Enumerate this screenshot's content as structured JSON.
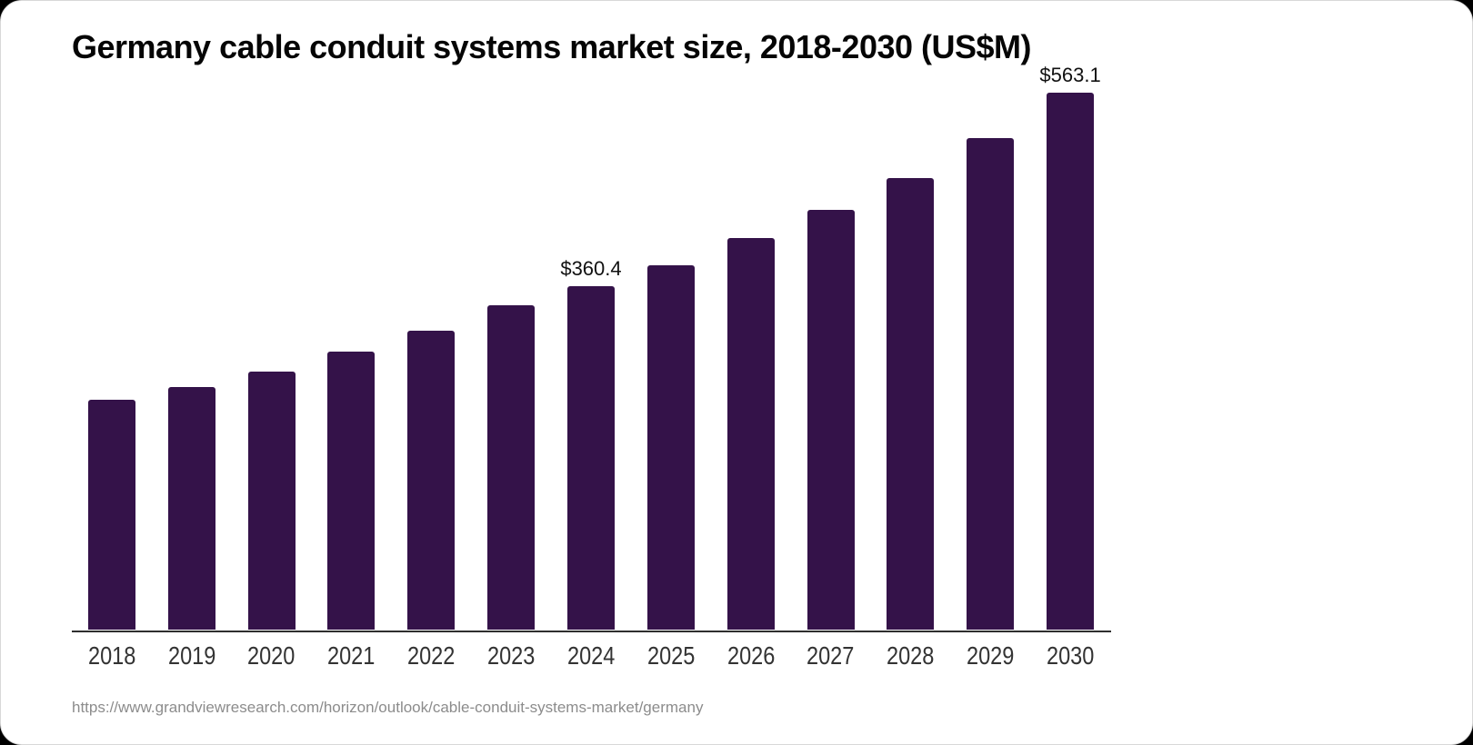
{
  "chart_data": {
    "type": "bar",
    "title": "Germany cable conduit systems market size, 2018-2030 (US$M)",
    "categories": [
      "2018",
      "2019",
      "2020",
      "2021",
      "2022",
      "2023",
      "2024",
      "2025",
      "2026",
      "2027",
      "2028",
      "2029",
      "2030"
    ],
    "values": [
      241.2,
      254.6,
      270.9,
      291.6,
      313.4,
      340.0,
      360.4,
      382.3,
      410.8,
      440.3,
      473.7,
      515.4,
      563.1
    ],
    "data_labels": [
      null,
      null,
      null,
      null,
      null,
      null,
      "$360.4",
      null,
      null,
      null,
      null,
      null,
      "$563.1"
    ],
    "xlabel": "",
    "ylabel": "",
    "ylim": [
      0,
      600
    ],
    "grid": false,
    "legend": "none",
    "bar_color": "#341249",
    "axis_line_color": "#2e2e2e",
    "tick_label_color": "#333333",
    "value_label_color": "#111111"
  },
  "footer": {
    "source_url": "https://www.grandviewresearch.com/horizon/outlook/cable-conduit-systems-market/germany"
  }
}
